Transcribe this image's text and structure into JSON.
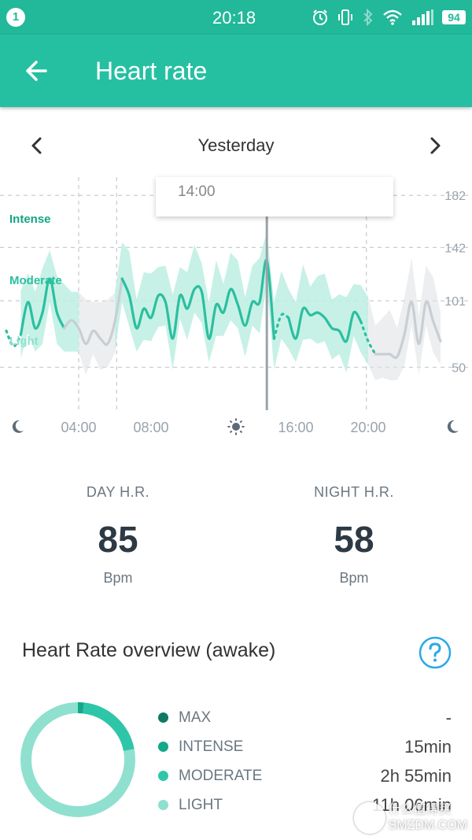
{
  "status_bar": {
    "notification_count": "1",
    "time": "20:18",
    "battery": "94",
    "icons": [
      "alarm-icon",
      "vibrate-icon",
      "bluetooth-icon",
      "wifi-icon",
      "signal-icon"
    ]
  },
  "app_bar": {
    "title": "Heart rate",
    "back_icon": "arrow-left-icon"
  },
  "date_nav": {
    "label": "Yesterday",
    "prev_icon": "chevron-left-icon",
    "next_icon": "chevron-right-icon"
  },
  "chart": {
    "tooltip_time": "14:00",
    "zone_labels": [
      "Intense",
      "Moderate",
      "Light"
    ],
    "x_labels": [
      "04:00",
      "08:00",
      "16:00",
      "20:00"
    ],
    "x_icons": [
      "moon-icon",
      "sun-icon",
      "moon-icon"
    ],
    "y_labels": [
      "182",
      "142",
      "101",
      "50"
    ]
  },
  "chart_data": {
    "type": "line",
    "title": "",
    "xlabel": "",
    "ylabel": "",
    "x_ticks": [
      "04:00",
      "08:00",
      "12:00",
      "16:00",
      "20:00"
    ],
    "y_ticks": [
      182,
      142,
      101,
      50
    ],
    "ylim": [
      40,
      190
    ],
    "zones": [
      "Intense",
      "Moderate",
      "Light"
    ],
    "series": [
      {
        "x": [
          0.0,
          0.4,
          0.8,
          1.2,
          1.6,
          2.0,
          2.4,
          2.8,
          3.2,
          3.6,
          4.0,
          4.4,
          4.8,
          5.2,
          5.6,
          6.0,
          6.4,
          6.8,
          7.2,
          7.6,
          8.0,
          8.4,
          8.8,
          9.2,
          9.6,
          10.0,
          10.4,
          10.8,
          11.2,
          11.6,
          12.0,
          12.4,
          12.8,
          13.2,
          13.6,
          14.0,
          14.4,
          14.8,
          15.2,
          15.6,
          16.0,
          16.4,
          16.8,
          17.2,
          17.6,
          18.0,
          18.4,
          18.8,
          19.2,
          19.6,
          20.0,
          20.4,
          20.8,
          21.2,
          21.6,
          22.0,
          22.4,
          22.8,
          23.2,
          23.6,
          24.0
        ],
        "y": [
          78,
          66,
          75,
          100,
          80,
          92,
          118,
          92,
          80,
          86,
          80,
          68,
          78,
          72,
          68,
          85,
          118,
          105,
          80,
          95,
          88,
          105,
          100,
          72,
          105,
          95,
          110,
          108,
          72,
          98,
          92,
          110,
          98,
          82,
          100,
          100,
          132,
          72,
          90,
          88,
          72,
          95,
          90,
          92,
          88,
          80,
          78,
          70,
          92,
          85,
          70,
          60,
          60,
          60,
          58,
          75,
          100,
          68,
          100,
          85,
          70
        ]
      }
    ],
    "shaded_band": true,
    "selected_x": "14:00"
  },
  "stats": {
    "day": {
      "label": "DAY H.R.",
      "value": "85",
      "unit": "Bpm"
    },
    "night": {
      "label": "NIGHT H.R.",
      "value": "58",
      "unit": "Bpm"
    }
  },
  "overview": {
    "title": "Heart Rate overview (awake)",
    "help_icon": "question-icon",
    "rows": [
      {
        "name": "MAX",
        "duration": "-",
        "color": "#0e7a63",
        "fraction": 0.0
      },
      {
        "name": "INTENSE",
        "duration": "15min",
        "color": "#12a88a",
        "fraction": 0.017
      },
      {
        "name": "MODERATE",
        "duration": "2h 55min",
        "color": "#2ec6a8",
        "fraction": 0.203
      },
      {
        "name": "LIGHT",
        "duration": "11h 06min",
        "color": "#8fe0cf",
        "fraction": 0.78
      }
    ]
  },
  "watermark": {
    "line1": "什么值得买",
    "line2": "SMZDM.COM"
  },
  "colors": {
    "brand": "#25c0a2",
    "line": "#2bbfa0",
    "band": "#bdeee2",
    "muted": "#c9ced3"
  }
}
